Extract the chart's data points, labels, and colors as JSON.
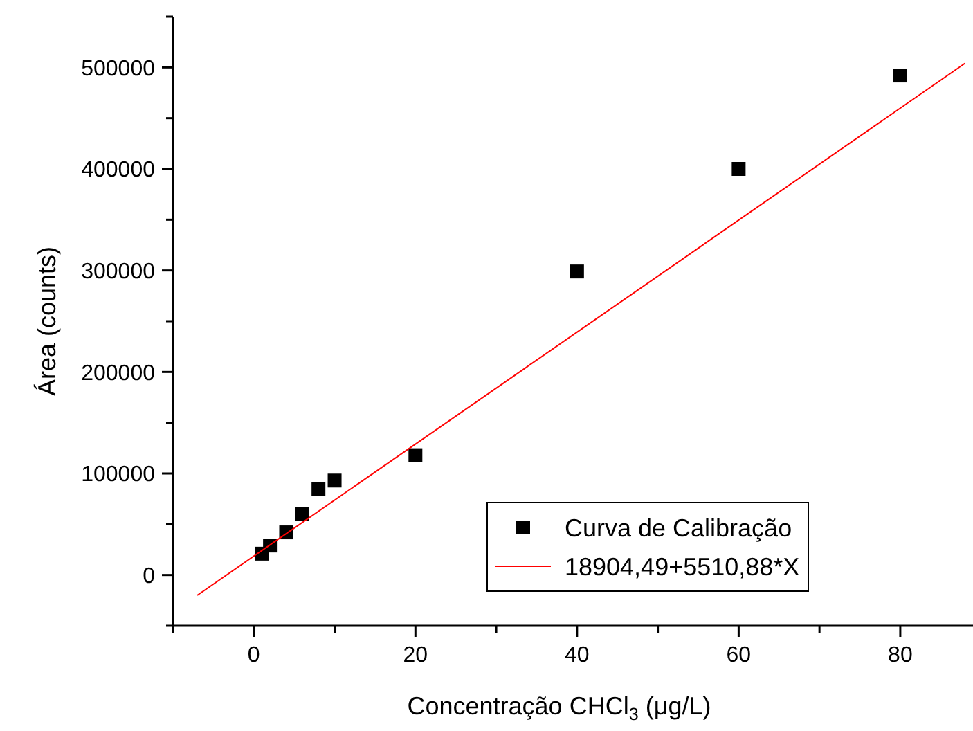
{
  "chart_data": {
    "type": "scatter",
    "xlabel": "Concentração CHCl$_{3}$ (μg/L)",
    "ylabel": "Área (counts)",
    "xlim": [
      -10,
      89
    ],
    "ylim": [
      -50000,
      550000
    ],
    "xticks": [
      {
        "value": -10,
        "label": null
      },
      0,
      {
        "value": 10,
        "label": null
      },
      20,
      {
        "value": 30,
        "label": null
      },
      40,
      {
        "value": 50,
        "label": null
      },
      60,
      {
        "value": 70,
        "label": null
      },
      80
    ],
    "yticks": [
      {
        "value": -50000,
        "label": null
      },
      0,
      {
        "value": 50000,
        "label": null
      },
      100000,
      {
        "value": 150000,
        "label": null
      },
      200000,
      {
        "value": 250000,
        "label": null
      },
      300000,
      {
        "value": 350000,
        "label": null
      },
      400000,
      {
        "value": 450000,
        "label": null
      },
      500000,
      {
        "value": 550000,
        "label": null
      }
    ],
    "legend": "bottom right",
    "grid": false,
    "series": [
      {
        "name": "Curva de Calibração",
        "marker": "square",
        "color": "#000000",
        "x": [
          1,
          2,
          4,
          6,
          8,
          10,
          20,
          40,
          60,
          80
        ],
        "values": [
          21000,
          29000,
          42000,
          60000,
          85000,
          93000,
          118000,
          299000,
          400000,
          492000
        ]
      },
      {
        "name": "18904,49+5510,88*X",
        "type": "line",
        "color": "#ff0000",
        "x": [
          -7,
          88
        ],
        "values": [
          -20000,
          504000
        ]
      }
    ]
  }
}
